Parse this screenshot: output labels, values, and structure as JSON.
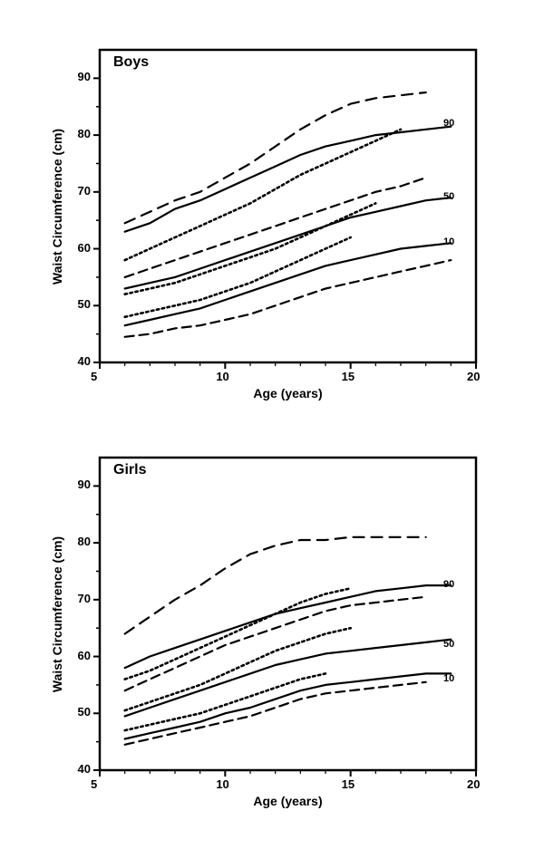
{
  "global": {
    "background_color": "#ffffff",
    "axis_color": "#000000",
    "tick_fontsize": 13,
    "label_fontsize": 14,
    "title_fontsize": 16,
    "line_label_fontsize": 11,
    "font_weight": "bold",
    "stroke_widths": {
      "solid": 2.2,
      "dashed": 2.2,
      "dotted": 2.6
    },
    "dash_patterns": {
      "solid": "",
      "dashed_long": "12 8",
      "dashed": "10 6",
      "dotted": "2.5 3.5"
    }
  },
  "boys": {
    "title": "Boys",
    "type": "line",
    "xlabel": "Age (years)",
    "ylabel": "Waist Circumference (cm)",
    "xlim": [
      5,
      20
    ],
    "ylim": [
      40,
      95
    ],
    "xticks": [
      5,
      10,
      15,
      20
    ],
    "yticks": [
      40,
      50,
      60,
      70,
      80,
      90
    ],
    "line_labels": [
      {
        "text": "90",
        "x": 18.7,
        "y": 82
      },
      {
        "text": "50",
        "x": 18.7,
        "y": 69
      },
      {
        "text": "10",
        "x": 18.7,
        "y": 61
      }
    ],
    "series": [
      {
        "style": "dashed_long",
        "color": "#000000",
        "points": [
          [
            6,
            64.5
          ],
          [
            7,
            66.5
          ],
          [
            8,
            68.5
          ],
          [
            9,
            70
          ],
          [
            10,
            72.5
          ],
          [
            11,
            75
          ],
          [
            12,
            78
          ],
          [
            13,
            81
          ],
          [
            14,
            83.5
          ],
          [
            15,
            85.5
          ],
          [
            16,
            86.5
          ],
          [
            17,
            87
          ],
          [
            18,
            87.5
          ]
        ]
      },
      {
        "style": "solid",
        "color": "#000000",
        "points": [
          [
            6,
            63
          ],
          [
            7,
            64.5
          ],
          [
            8,
            67
          ],
          [
            9,
            68.5
          ],
          [
            10,
            70.5
          ],
          [
            11,
            72.5
          ],
          [
            12,
            74.5
          ],
          [
            13,
            76.5
          ],
          [
            14,
            78
          ],
          [
            15,
            79
          ],
          [
            16,
            80
          ],
          [
            17,
            80.5
          ],
          [
            18,
            81
          ],
          [
            19,
            81.5
          ]
        ]
      },
      {
        "style": "dotted",
        "color": "#000000",
        "points": [
          [
            6,
            58
          ],
          [
            7,
            60
          ],
          [
            8,
            62
          ],
          [
            9,
            64
          ],
          [
            10,
            66
          ],
          [
            11,
            68
          ],
          [
            12,
            70.5
          ],
          [
            13,
            73
          ],
          [
            14,
            75
          ],
          [
            15,
            77
          ],
          [
            16,
            79
          ],
          [
            17,
            81
          ]
        ]
      },
      {
        "style": "dashed",
        "color": "#000000",
        "points": [
          [
            6,
            55
          ],
          [
            7,
            56.5
          ],
          [
            8,
            58
          ],
          [
            9,
            59.5
          ],
          [
            10,
            61
          ],
          [
            11,
            62.5
          ],
          [
            12,
            64
          ],
          [
            13,
            65.5
          ],
          [
            14,
            67
          ],
          [
            15,
            68.5
          ],
          [
            16,
            70
          ],
          [
            17,
            71
          ],
          [
            18,
            72.5
          ]
        ]
      },
      {
        "style": "solid",
        "color": "#000000",
        "points": [
          [
            6,
            53
          ],
          [
            7,
            54
          ],
          [
            8,
            55
          ],
          [
            9,
            56.5
          ],
          [
            10,
            58
          ],
          [
            11,
            59.5
          ],
          [
            12,
            61
          ],
          [
            13,
            62.5
          ],
          [
            14,
            64
          ],
          [
            15,
            65.5
          ],
          [
            16,
            66.5
          ],
          [
            17,
            67.5
          ],
          [
            18,
            68.5
          ],
          [
            19,
            69
          ]
        ]
      },
      {
        "style": "dotted",
        "color": "#000000",
        "points": [
          [
            6,
            52
          ],
          [
            7,
            53
          ],
          [
            8,
            54
          ],
          [
            9,
            55.5
          ],
          [
            10,
            57
          ],
          [
            11,
            58.5
          ],
          [
            12,
            60
          ],
          [
            13,
            62
          ],
          [
            14,
            64
          ],
          [
            15,
            66
          ],
          [
            16,
            68
          ]
        ]
      },
      {
        "style": "dotted",
        "color": "#000000",
        "points": [
          [
            6,
            48
          ],
          [
            7,
            49
          ],
          [
            8,
            50
          ],
          [
            9,
            51
          ],
          [
            10,
            52.5
          ],
          [
            11,
            54
          ],
          [
            12,
            56
          ],
          [
            13,
            58
          ],
          [
            14,
            60
          ],
          [
            15,
            62
          ]
        ]
      },
      {
        "style": "solid",
        "color": "#000000",
        "points": [
          [
            6,
            46.5
          ],
          [
            7,
            47.5
          ],
          [
            8,
            48.5
          ],
          [
            9,
            49.5
          ],
          [
            10,
            51
          ],
          [
            11,
            52.5
          ],
          [
            12,
            54
          ],
          [
            13,
            55.5
          ],
          [
            14,
            57
          ],
          [
            15,
            58
          ],
          [
            16,
            59
          ],
          [
            17,
            60
          ],
          [
            18,
            60.5
          ],
          [
            19,
            61
          ]
        ]
      },
      {
        "style": "dashed",
        "color": "#000000",
        "points": [
          [
            6,
            44.5
          ],
          [
            7,
            45
          ],
          [
            8,
            46
          ],
          [
            9,
            46.5
          ],
          [
            10,
            47.5
          ],
          [
            11,
            48.5
          ],
          [
            12,
            50
          ],
          [
            13,
            51.5
          ],
          [
            14,
            53
          ],
          [
            15,
            54
          ],
          [
            16,
            55
          ],
          [
            17,
            56
          ],
          [
            18,
            57
          ],
          [
            19,
            58
          ]
        ]
      }
    ]
  },
  "girls": {
    "title": "Girls",
    "type": "line",
    "xlabel": "Age (years)",
    "ylabel": "Waist Circumference (cm)",
    "xlim": [
      5,
      20
    ],
    "ylim": [
      40,
      95
    ],
    "xticks": [
      5,
      10,
      15,
      20
    ],
    "yticks": [
      40,
      50,
      60,
      70,
      80,
      90
    ],
    "line_labels": [
      {
        "text": "90",
        "x": 18.7,
        "y": 72.5
      },
      {
        "text": "50",
        "x": 18.7,
        "y": 62
      },
      {
        "text": "10",
        "x": 18.7,
        "y": 56
      }
    ],
    "series": [
      {
        "style": "dashed_long",
        "color": "#000000",
        "points": [
          [
            6,
            64
          ],
          [
            7,
            67
          ],
          [
            8,
            70
          ],
          [
            9,
            72.5
          ],
          [
            10,
            75.5
          ],
          [
            11,
            78
          ],
          [
            12,
            79.5
          ],
          [
            13,
            80.5
          ],
          [
            14,
            80.5
          ],
          [
            15,
            81
          ],
          [
            16,
            81
          ],
          [
            17,
            81
          ],
          [
            18,
            81
          ]
        ]
      },
      {
        "style": "solid",
        "color": "#000000",
        "points": [
          [
            6,
            58
          ],
          [
            7,
            60
          ],
          [
            8,
            61.5
          ],
          [
            9,
            63
          ],
          [
            10,
            64.5
          ],
          [
            11,
            66
          ],
          [
            12,
            67.5
          ],
          [
            13,
            68.5
          ],
          [
            14,
            69.5
          ],
          [
            15,
            70.5
          ],
          [
            16,
            71.5
          ],
          [
            17,
            72
          ],
          [
            18,
            72.5
          ],
          [
            19,
            72.5
          ]
        ]
      },
      {
        "style": "dotted",
        "color": "#000000",
        "points": [
          [
            6,
            56
          ],
          [
            7,
            57.5
          ],
          [
            8,
            59.5
          ],
          [
            9,
            61.5
          ],
          [
            10,
            63.5
          ],
          [
            11,
            65.5
          ],
          [
            12,
            67.5
          ],
          [
            13,
            69.5
          ],
          [
            14,
            71
          ],
          [
            15,
            72
          ]
        ]
      },
      {
        "style": "dashed",
        "color": "#000000",
        "points": [
          [
            6,
            54
          ],
          [
            7,
            56
          ],
          [
            8,
            58
          ],
          [
            9,
            60
          ],
          [
            10,
            62
          ],
          [
            11,
            63.5
          ],
          [
            12,
            65
          ],
          [
            13,
            66.5
          ],
          [
            14,
            68
          ],
          [
            15,
            69
          ],
          [
            16,
            69.5
          ],
          [
            17,
            70
          ],
          [
            18,
            70.5
          ]
        ]
      },
      {
        "style": "dotted",
        "color": "#000000",
        "points": [
          [
            6,
            50.5
          ],
          [
            7,
            52
          ],
          [
            8,
            53.5
          ],
          [
            9,
            55
          ],
          [
            10,
            57
          ],
          [
            11,
            59
          ],
          [
            12,
            61
          ],
          [
            13,
            62.5
          ],
          [
            14,
            64
          ],
          [
            15,
            65
          ]
        ]
      },
      {
        "style": "solid",
        "color": "#000000",
        "points": [
          [
            6,
            49.5
          ],
          [
            7,
            51
          ],
          [
            8,
            52.5
          ],
          [
            9,
            54
          ],
          [
            10,
            55.5
          ],
          [
            11,
            57
          ],
          [
            12,
            58.5
          ],
          [
            13,
            59.5
          ],
          [
            14,
            60.5
          ],
          [
            15,
            61
          ],
          [
            16,
            61.5
          ],
          [
            17,
            62
          ],
          [
            18,
            62.5
          ],
          [
            19,
            63
          ]
        ]
      },
      {
        "style": "dotted",
        "color": "#000000",
        "points": [
          [
            6,
            47
          ],
          [
            7,
            48
          ],
          [
            8,
            49
          ],
          [
            9,
            50
          ],
          [
            10,
            51.5
          ],
          [
            11,
            53
          ],
          [
            12,
            54.5
          ],
          [
            13,
            56
          ],
          [
            14,
            57
          ]
        ]
      },
      {
        "style": "solid",
        "color": "#000000",
        "points": [
          [
            6,
            45.5
          ],
          [
            7,
            46.5
          ],
          [
            8,
            47.5
          ],
          [
            9,
            48.5
          ],
          [
            10,
            50
          ],
          [
            11,
            51
          ],
          [
            12,
            52.5
          ],
          [
            13,
            54
          ],
          [
            14,
            55
          ],
          [
            15,
            55.5
          ],
          [
            16,
            56
          ],
          [
            17,
            56.5
          ],
          [
            18,
            57
          ],
          [
            19,
            57
          ]
        ]
      },
      {
        "style": "dashed",
        "color": "#000000",
        "points": [
          [
            6,
            44.5
          ],
          [
            7,
            45.5
          ],
          [
            8,
            46.5
          ],
          [
            9,
            47.5
          ],
          [
            10,
            48.5
          ],
          [
            11,
            49.5
          ],
          [
            12,
            51
          ],
          [
            13,
            52.5
          ],
          [
            14,
            53.5
          ],
          [
            15,
            54
          ],
          [
            16,
            54.5
          ],
          [
            17,
            55
          ],
          [
            18,
            55.5
          ]
        ]
      }
    ]
  }
}
